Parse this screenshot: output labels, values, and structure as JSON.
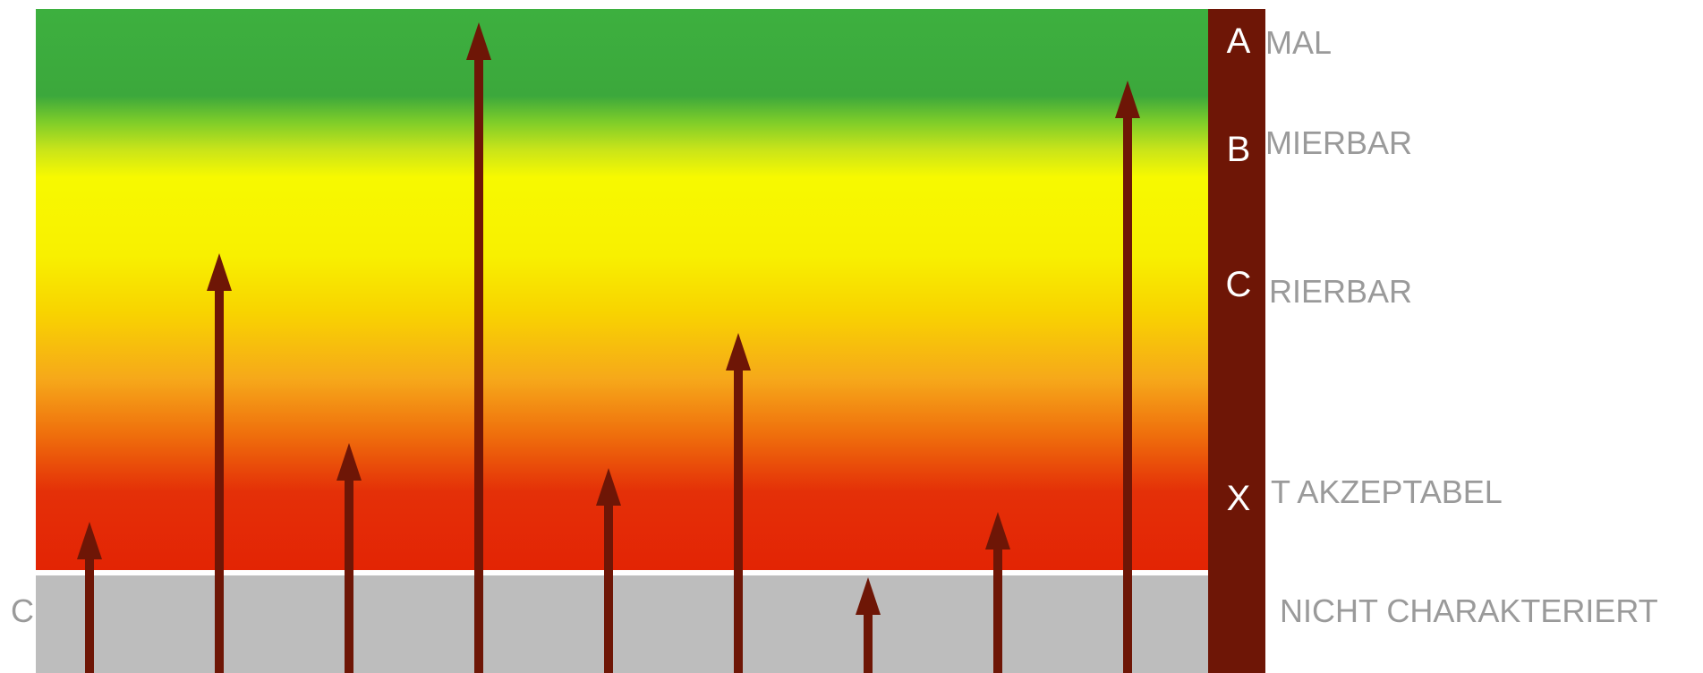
{
  "grades": [
    {
      "letter": "A",
      "label": "MAL"
    },
    {
      "letter": "B",
      "label": "MIERBAR"
    },
    {
      "letter": "C",
      "label": "RIERBAR"
    },
    {
      "letter": "X",
      "label": "T AKZEPTABEL"
    }
  ],
  "bottom_label": "NICHT CHARAKTERIERT",
  "left_fragment": "C",
  "colors": {
    "grade_bar": "#6e1606",
    "arrow": "#6e1606",
    "band_green": "#3db03f",
    "band_yellow": "#f7f900",
    "band_red": "#e32404",
    "gray_zone": "#bdbdbd",
    "label_text": "#9a9a9a"
  }
}
